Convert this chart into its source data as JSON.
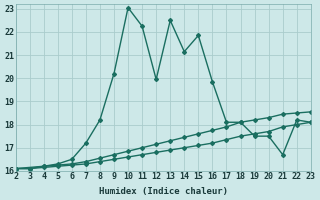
{
  "xlabel": "Humidex (Indice chaleur)",
  "ylabel": "",
  "bg_color": "#cde8e8",
  "grid_color": "#aacccc",
  "line_color": "#1a6e60",
  "xlim": [
    2,
    23
  ],
  "ylim": [
    16,
    23.2
  ],
  "xticks": [
    2,
    3,
    4,
    5,
    6,
    7,
    8,
    9,
    10,
    11,
    12,
    13,
    14,
    15,
    16,
    17,
    18,
    19,
    20,
    21,
    22,
    23
  ],
  "yticks": [
    16,
    17,
    18,
    19,
    20,
    21,
    22,
    23
  ],
  "series_linear1_x": [
    2,
    3,
    4,
    5,
    6,
    7,
    8,
    9,
    10,
    11,
    12,
    13,
    14,
    15,
    16,
    17,
    18,
    19,
    20,
    21,
    22,
    23
  ],
  "series_linear1_y": [
    16.1,
    16.1,
    16.15,
    16.2,
    16.25,
    16.3,
    16.4,
    16.5,
    16.6,
    16.7,
    16.8,
    16.9,
    17.0,
    17.1,
    17.2,
    17.35,
    17.5,
    17.6,
    17.7,
    17.9,
    18.0,
    18.1
  ],
  "series_linear2_x": [
    2,
    3,
    4,
    5,
    6,
    7,
    8,
    9,
    10,
    11,
    12,
    13,
    14,
    15,
    16,
    17,
    18,
    19,
    20,
    21,
    22,
    23
  ],
  "series_linear2_y": [
    16.1,
    16.1,
    16.2,
    16.25,
    16.3,
    16.4,
    16.55,
    16.7,
    16.85,
    17.0,
    17.15,
    17.3,
    17.45,
    17.6,
    17.75,
    17.9,
    18.1,
    18.2,
    18.3,
    18.45,
    18.5,
    18.55
  ],
  "series_wave_x": [
    2,
    4,
    5,
    6,
    7,
    8,
    9,
    10,
    11,
    12,
    13,
    14,
    15,
    16,
    17,
    18,
    19,
    20,
    21,
    22,
    23
  ],
  "series_wave_y": [
    16.1,
    16.2,
    16.3,
    16.5,
    17.2,
    18.2,
    20.2,
    23.05,
    22.25,
    19.95,
    22.5,
    21.15,
    21.85,
    19.85,
    18.1,
    18.1,
    17.5,
    17.5,
    16.7,
    18.2,
    18.1
  ],
  "line_width": 1.0,
  "marker": "D",
  "marker_size": 2.0
}
